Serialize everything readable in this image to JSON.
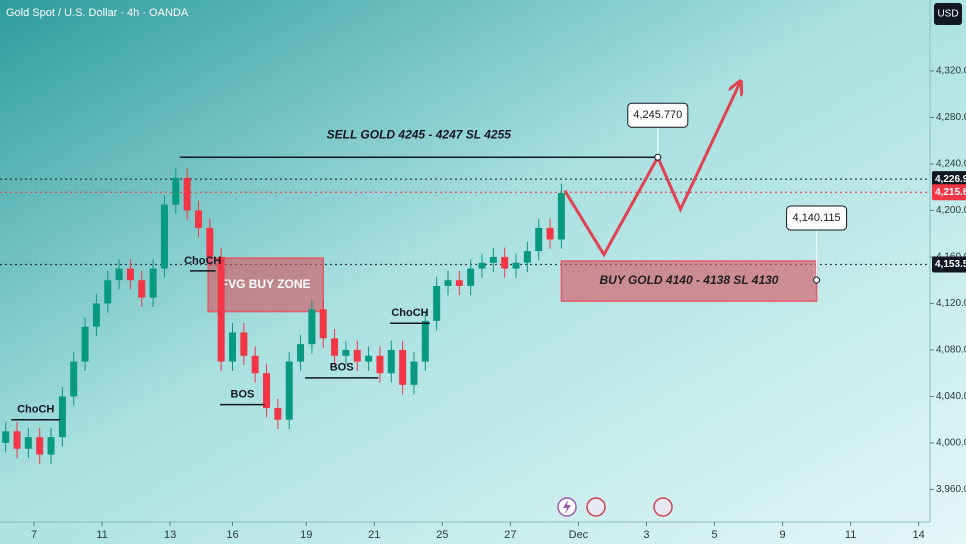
{
  "header": {
    "title": "Gold Spot / U.S. Dollar · 4h · OANDA",
    "currency": "USD"
  },
  "chart_data": {
    "type": "candlestick",
    "x": [
      1,
      3,
      5,
      7,
      9,
      11,
      13,
      15,
      17,
      19,
      21,
      23,
      25,
      27,
      29,
      31,
      33,
      35,
      37,
      39,
      41,
      43,
      45,
      47,
      49,
      51,
      53,
      55,
      57,
      59,
      61,
      63,
      65,
      67,
      69,
      71,
      73,
      75,
      77,
      79,
      81,
      83,
      85,
      87,
      89,
      91,
      93,
      95,
      97,
      99
    ],
    "open": [
      4000,
      4010,
      3995,
      4005,
      3990,
      4005,
      4040,
      4070,
      4100,
      4120,
      4140,
      4150,
      4140,
      4125,
      4150,
      4205,
      4228,
      4200,
      4185,
      4160,
      4070,
      4095,
      4075,
      4060,
      4030,
      4020,
      4070,
      4085,
      4115,
      4090,
      4075,
      4080,
      4070,
      4075,
      4060,
      4080,
      4050,
      4070,
      4105,
      4135,
      4140,
      4135,
      4150,
      4155,
      4160,
      4150,
      4155,
      4165,
      4185,
      4175
    ],
    "high": [
      4018,
      4018,
      4013,
      4013,
      4013,
      4048,
      4078,
      4108,
      4128,
      4148,
      4158,
      4158,
      4148,
      4158,
      4213,
      4236,
      4236,
      4208,
      4193,
      4168,
      4103,
      4103,
      4083,
      4068,
      4038,
      4078,
      4093,
      4123,
      4123,
      4098,
      4088,
      4088,
      4083,
      4083,
      4088,
      4088,
      4078,
      4113,
      4143,
      4148,
      4148,
      4158,
      4163,
      4168,
      4168,
      4163,
      4173,
      4193,
      4193,
      4223
    ],
    "low": [
      3992,
      3987,
      3987,
      3982,
      3982,
      3997,
      4032,
      4062,
      4092,
      4112,
      4132,
      4132,
      4117,
      4117,
      4142,
      4197,
      4192,
      4177,
      4152,
      4062,
      4062,
      4067,
      4052,
      4022,
      4012,
      4012,
      4062,
      4077,
      4082,
      4067,
      4067,
      4062,
      4062,
      4052,
      4052,
      4042,
      4042,
      4062,
      4097,
      4127,
      4127,
      4127,
      4142,
      4147,
      4142,
      4142,
      4147,
      4157,
      4167,
      4167
    ],
    "close": [
      4010,
      3995,
      4005,
      3990,
      4005,
      4040,
      4070,
      4100,
      4120,
      4140,
      4150,
      4140,
      4125,
      4150,
      4205,
      4228,
      4200,
      4185,
      4160,
      4070,
      4095,
      4075,
      4060,
      4030,
      4020,
      4070,
      4085,
      4115,
      4090,
      4075,
      4080,
      4070,
      4075,
      4060,
      4080,
      4050,
      4070,
      4105,
      4135,
      4140,
      4135,
      4150,
      4155,
      4160,
      4150,
      4155,
      4165,
      4185,
      4175,
      4215
    ],
    "up_color": "#089981",
    "down_color": "#f23645",
    "xlim": [
      0,
      164
    ],
    "xticks": [
      {
        "value": 6,
        "label": "7"
      },
      {
        "value": 18,
        "label": "11"
      },
      {
        "value": 30,
        "label": "13"
      },
      {
        "value": 41,
        "label": "16"
      },
      {
        "value": 54,
        "label": "19"
      },
      {
        "value": 66,
        "label": "21"
      },
      {
        "value": 78,
        "label": "25"
      },
      {
        "value": 90,
        "label": "27"
      },
      {
        "value": 102,
        "label": "Dec"
      },
      {
        "value": 114,
        "label": "3"
      },
      {
        "value": 126,
        "label": "5"
      },
      {
        "value": 138,
        "label": "9"
      },
      {
        "value": 150,
        "label": "11"
      },
      {
        "value": 162,
        "label": "14"
      }
    ],
    "ylim": [
      3932,
      4381
    ],
    "yticks": [
      {
        "value": 3960,
        "label": "3,960.0"
      },
      {
        "value": 4000,
        "label": "4,000.0"
      },
      {
        "value": 4040,
        "label": "4,040.0"
      },
      {
        "value": 4080,
        "label": "4,080.0"
      },
      {
        "value": 4120,
        "label": "4,120.0"
      },
      {
        "value": 4160,
        "label": "4,160.0"
      },
      {
        "value": 4200,
        "label": "4,200.0"
      },
      {
        "value": 4240,
        "label": "4,240.0"
      },
      {
        "value": 4280,
        "label": "4,280.0"
      },
      {
        "value": 4320,
        "label": "4,320.0"
      }
    ],
    "price_tags": [
      {
        "value": 4226.9,
        "label": "4,226.9",
        "color": "#131722"
      },
      {
        "value": 4215.6,
        "label": "4,215.6",
        "color": "#f23645"
      },
      {
        "value": 4153.5,
        "label": "4,153.5",
        "color": "#131722"
      }
    ],
    "levels": [
      {
        "text": "SELL GOLD 4245 - 4247 SL 4255",
        "value": 4245.77,
        "x": [
          31.7,
          116
        ]
      }
    ],
    "callouts": [
      {
        "label": "4,245.770",
        "value": 4245.77,
        "x": 116
      },
      {
        "label": "4,140.115",
        "value": 4140.115,
        "x": 144
      }
    ],
    "zones": [
      {
        "text": "FVG BUY ZONE",
        "x": [
          36.7,
          57
        ],
        "range": [
          4113,
          4159
        ]
      },
      {
        "text": "BUY GOLD 4140 - 4138 SL 4130",
        "x": [
          99,
          144
        ],
        "range": [
          4122,
          4156.5
        ]
      }
    ],
    "structure": [
      {
        "text": "ChoCH",
        "value": 4020,
        "x": [
          2,
          10.6
        ]
      },
      {
        "text": "ChoCH",
        "value": 4148,
        "x": [
          33.5,
          38
        ]
      },
      {
        "text": "BOS",
        "value": 4033,
        "x": [
          38.8,
          46.7
        ]
      },
      {
        "text": "BOS",
        "value": 4056,
        "x": [
          53.8,
          66.7
        ]
      },
      {
        "text": "ChoCH",
        "value": 4103,
        "x": [
          68.8,
          75.8
        ]
      }
    ],
    "projection": {
      "x": [
        99.6,
        106.5,
        116,
        120,
        130.5
      ],
      "values": [
        4217,
        4162,
        4245.77,
        4201,
        4310
      ],
      "color": "#e0434f"
    }
  }
}
